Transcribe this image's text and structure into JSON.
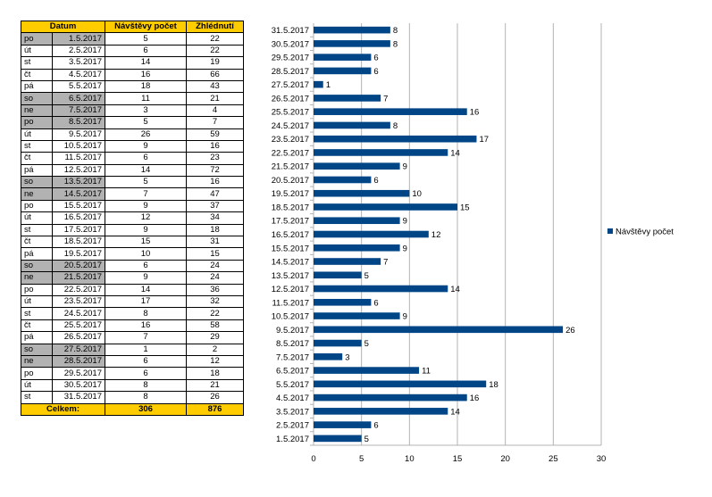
{
  "table": {
    "headers": [
      "Datum",
      "Návštěvy počet",
      "Zhlédnutí"
    ],
    "rows": [
      {
        "day": "po",
        "date": "1.5.2017",
        "visits": "5",
        "views": "22",
        "weekend": true
      },
      {
        "day": "út",
        "date": "2.5.2017",
        "visits": "6",
        "views": "22",
        "weekend": false
      },
      {
        "day": "st",
        "date": "3.5.2017",
        "visits": "14",
        "views": "19",
        "weekend": false
      },
      {
        "day": "čt",
        "date": "4.5.2017",
        "visits": "16",
        "views": "66",
        "weekend": false
      },
      {
        "day": "pá",
        "date": "5.5.2017",
        "visits": "18",
        "views": "43",
        "weekend": false
      },
      {
        "day": "so",
        "date": "6.5.2017",
        "visits": "11",
        "views": "21",
        "weekend": true
      },
      {
        "day": "ne",
        "date": "7.5.2017",
        "visits": "3",
        "views": "4",
        "weekend": true
      },
      {
        "day": "po",
        "date": "8.5.2017",
        "visits": "5",
        "views": "7",
        "weekend": true
      },
      {
        "day": "út",
        "date": "9.5.2017",
        "visits": "26",
        "views": "59",
        "weekend": false
      },
      {
        "day": "st",
        "date": "10.5.2017",
        "visits": "9",
        "views": "16",
        "weekend": false
      },
      {
        "day": "čt",
        "date": "11.5.2017",
        "visits": "6",
        "views": "23",
        "weekend": false
      },
      {
        "day": "pá",
        "date": "12.5.2017",
        "visits": "14",
        "views": "72",
        "weekend": false
      },
      {
        "day": "so",
        "date": "13.5.2017",
        "visits": "5",
        "views": "16",
        "weekend": true
      },
      {
        "day": "ne",
        "date": "14.5.2017",
        "visits": "7",
        "views": "47",
        "weekend": true
      },
      {
        "day": "po",
        "date": "15.5.2017",
        "visits": "9",
        "views": "37",
        "weekend": false
      },
      {
        "day": "út",
        "date": "16.5.2017",
        "visits": "12",
        "views": "34",
        "weekend": false
      },
      {
        "day": "st",
        "date": "17.5.2017",
        "visits": "9",
        "views": "18",
        "weekend": false
      },
      {
        "day": "čt",
        "date": "18.5.2017",
        "visits": "15",
        "views": "31",
        "weekend": false
      },
      {
        "day": "pá",
        "date": "19.5.2017",
        "visits": "10",
        "views": "15",
        "weekend": false
      },
      {
        "day": "so",
        "date": "20.5.2017",
        "visits": "6",
        "views": "24",
        "weekend": true
      },
      {
        "day": "ne",
        "date": "21.5.2017",
        "visits": "9",
        "views": "24",
        "weekend": true
      },
      {
        "day": "po",
        "date": "22.5.2017",
        "visits": "14",
        "views": "36",
        "weekend": false
      },
      {
        "day": "út",
        "date": "23.5.2017",
        "visits": "17",
        "views": "32",
        "weekend": false
      },
      {
        "day": "st",
        "date": "24.5.2017",
        "visits": "8",
        "views": "22",
        "weekend": false
      },
      {
        "day": "čt",
        "date": "25.5.2017",
        "visits": "16",
        "views": "58",
        "weekend": false
      },
      {
        "day": "pá",
        "date": "26.5.2017",
        "visits": "7",
        "views": "29",
        "weekend": false
      },
      {
        "day": "so",
        "date": "27.5.2017",
        "visits": "1",
        "views": "2",
        "weekend": true
      },
      {
        "day": "ne",
        "date": "28.5.2017",
        "visits": "6",
        "views": "12",
        "weekend": true
      },
      {
        "day": "po",
        "date": "29.5.2017",
        "visits": "6",
        "views": "18",
        "weekend": false
      },
      {
        "day": "út",
        "date": "30.5.2017",
        "visits": "8",
        "views": "21",
        "weekend": false
      },
      {
        "day": "st",
        "date": "31.5.2017",
        "visits": "8",
        "views": "26",
        "weekend": false
      }
    ],
    "total": {
      "label": "Celkem:",
      "visits": "306",
      "views": "876"
    }
  },
  "chart_data": {
    "type": "bar",
    "orientation": "horizontal",
    "categories": [
      "1.5.2017",
      "2.5.2017",
      "3.5.2017",
      "4.5.2017",
      "5.5.2017",
      "6.5.2017",
      "7.5.2017",
      "8.5.2017",
      "9.5.2017",
      "10.5.2017",
      "11.5.2017",
      "12.5.2017",
      "13.5.2017",
      "14.5.2017",
      "15.5.2017",
      "16.5.2017",
      "17.5.2017",
      "18.5.2017",
      "19.5.2017",
      "20.5.2017",
      "21.5.2017",
      "22.5.2017",
      "23.5.2017",
      "24.5.2017",
      "25.5.2017",
      "26.5.2017",
      "27.5.2017",
      "28.5.2017",
      "29.5.2017",
      "30.5.2017",
      "31.5.2017"
    ],
    "series": [
      {
        "name": "Návštěvy počet",
        "color": "#004586",
        "values": [
          5,
          6,
          14,
          16,
          18,
          11,
          3,
          5,
          26,
          9,
          6,
          14,
          5,
          7,
          9,
          12,
          9,
          15,
          10,
          6,
          9,
          14,
          17,
          8,
          16,
          7,
          1,
          6,
          6,
          8,
          8
        ]
      }
    ],
    "xlim": [
      0,
      30
    ],
    "xticks": [
      0,
      5,
      10,
      15,
      20,
      25,
      30
    ],
    "grid": true,
    "data_labels": true,
    "legend_position": "right",
    "category_order": "bottom-to-top"
  }
}
